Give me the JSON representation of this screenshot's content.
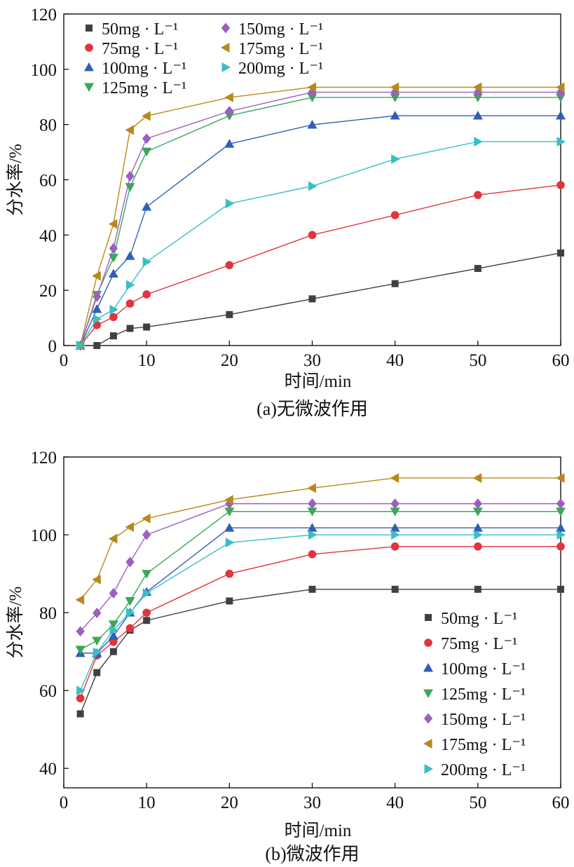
{
  "series_names": [
    "50mg · L⁻¹",
    "75mg · L⁻¹",
    "100mg · L⁻¹",
    "125mg · L⁻¹",
    "150mg · L⁻¹",
    "175mg · L⁻¹",
    "200mg · L⁻¹"
  ],
  "colors": {
    "s50": "#404040",
    "s75": "#e3343e",
    "s100": "#2f5fb8",
    "s125": "#3aa857",
    "s150": "#9b5fc0",
    "s175": "#b8891a",
    "s200": "#37bfc4"
  },
  "markers": [
    "square",
    "circle",
    "triangle-up",
    "triangle-down",
    "diamond",
    "triangle-left",
    "triangle-right"
  ],
  "chart_data": [
    {
      "type": "line",
      "caption": "(a)无微波作用",
      "xlabel": "时间/min",
      "ylabel": "分水率/%",
      "xlim": [
        0,
        60
      ],
      "ylim": [
        0,
        120
      ],
      "xticks": [
        "0",
        "10",
        "20",
        "30",
        "40",
        "50",
        "60"
      ],
      "yticks": [
        "0",
        "20",
        "40",
        "60",
        "80",
        "100",
        "120"
      ],
      "x": [
        2,
        4,
        6,
        8,
        10,
        20,
        30,
        40,
        50,
        60
      ],
      "series": [
        {
          "name": "50mg · L⁻¹",
          "values": [
            0,
            0,
            3.5,
            6.2,
            6.7,
            11.2,
            16.9,
            22.4,
            27.9,
            33.5
          ]
        },
        {
          "name": "75mg · L⁻¹",
          "values": [
            0,
            7.4,
            10.3,
            15.2,
            18.5,
            29.1,
            40,
            47.2,
            54.5,
            58.1
          ]
        },
        {
          "name": "100mg · L⁻¹",
          "values": [
            0,
            13.2,
            26,
            32.4,
            50.2,
            73,
            79.9,
            83.2,
            83.2,
            83.2
          ]
        },
        {
          "name": "125mg · L⁻¹",
          "values": [
            0,
            18.4,
            31.8,
            57.4,
            70.2,
            83.2,
            89.8,
            89.8,
            89.8,
            89.8
          ]
        },
        {
          "name": "150mg · L⁻¹",
          "values": [
            0,
            17.7,
            35.2,
            61.3,
            74.9,
            84.8,
            91.7,
            91.7,
            91.7,
            91.7
          ]
        },
        {
          "name": "175mg · L⁻¹",
          "values": [
            0,
            25.2,
            44,
            78,
            83.1,
            89.8,
            93.5,
            93.5,
            93.5,
            93.5
          ]
        },
        {
          "name": "200mg · L⁻¹",
          "values": [
            0,
            9.6,
            13,
            21.9,
            30.3,
            51.4,
            57.7,
            67.5,
            73.8,
            73.8
          ]
        }
      ],
      "legend_position": "top-left"
    },
    {
      "type": "line",
      "caption": "(b)微波作用",
      "xlabel": "时间/min",
      "ylabel": "分水率/%",
      "xlim": [
        0,
        60
      ],
      "ylim": [
        35,
        120
      ],
      "xticks": [
        "0",
        "10",
        "20",
        "30",
        "40",
        "50",
        "60"
      ],
      "yticks": [
        "40",
        "60",
        "80",
        "100",
        "120"
      ],
      "x": [
        2,
        4,
        6,
        8,
        10,
        20,
        30,
        40,
        50,
        60
      ],
      "series": [
        {
          "name": "50mg · L⁻¹",
          "values": [
            54,
            64.6,
            70,
            75.5,
            78,
            83,
            86,
            86,
            86,
            86
          ]
        },
        {
          "name": "75mg · L⁻¹",
          "values": [
            58,
            69,
            72.5,
            76,
            80,
            90,
            95,
            97,
            97,
            97
          ]
        },
        {
          "name": "100mg · L⁻¹",
          "values": [
            69.6,
            69.6,
            74,
            80,
            85.3,
            101.8,
            101.8,
            101.8,
            101.8,
            101.8
          ]
        },
        {
          "name": "125mg · L⁻¹",
          "values": [
            70.5,
            72.8,
            77,
            83,
            90,
            106,
            106,
            106,
            106,
            106
          ]
        },
        {
          "name": "150mg · L⁻¹",
          "values": [
            75.2,
            79.9,
            85,
            93,
            100,
            108,
            108,
            108,
            108,
            108
          ]
        },
        {
          "name": "175mg · L⁻¹",
          "values": [
            83.3,
            88.5,
            99,
            102,
            104.2,
            109,
            112,
            114.6,
            114.6,
            114.6
          ]
        },
        {
          "name": "200mg · L⁻¹",
          "values": [
            60,
            69.8,
            75.5,
            80,
            85,
            98,
            100,
            100,
            100,
            100
          ]
        }
      ],
      "legend_position": "bottom-right"
    }
  ]
}
